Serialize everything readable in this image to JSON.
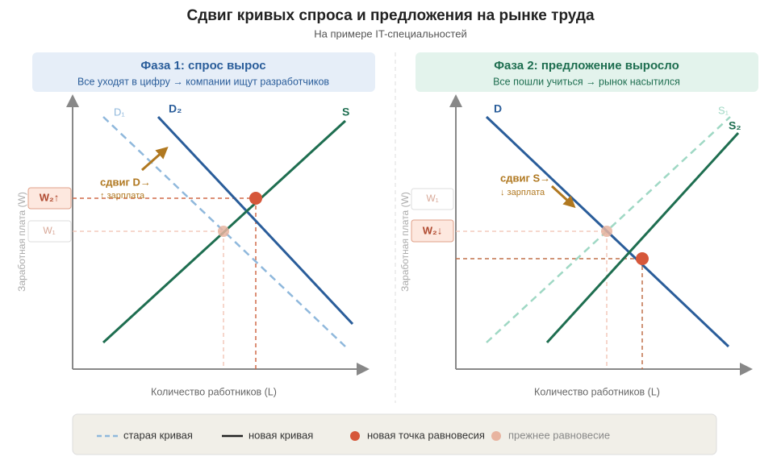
{
  "title": "Сдвиг кривых спроса и предложения на рынке труда",
  "subtitle": "На примере IT-специальностей",
  "panels": [
    {
      "title": "Фаза 1: спрос вырос",
      "subtitle": "Все уходят в цифру → компании ищут разработчиков",
      "y_label": "Заработная плата (W)",
      "x_label": "Количество работников (L)",
      "curves": [
        "D₁",
        "D₂",
        "S"
      ],
      "annotation": [
        "сдвиг D→",
        "↑ зарплата"
      ],
      "prices": [
        "W₂↑",
        "W₁"
      ]
    },
    {
      "title": "Фаза 2: предложение выросло",
      "subtitle": "Все пошли учиться → рынок насытился",
      "y_label": "Заработная плата (W)",
      "x_label": "Количество работников (L)",
      "curves": [
        "D",
        "S₁",
        "S₂"
      ],
      "annotation": [
        "сдвиг S→",
        "↓ зарплата"
      ],
      "prices": [
        "W₁",
        "W₂↓"
      ]
    }
  ],
  "legend": [
    "старая кривая",
    "новая кривая",
    "новая точка равновесия",
    "прежнее равновесие"
  ]
}
